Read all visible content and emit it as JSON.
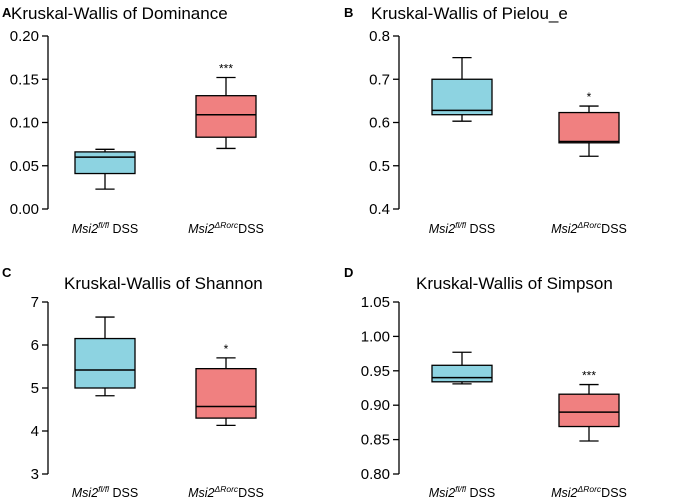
{
  "colors": {
    "group1": "#8dd3e1",
    "group2": "#f08080",
    "stroke": "#000000"
  },
  "chart_data": [
    {
      "type": "box",
      "panel": "A",
      "title": "Kruskal-Wallis of Dominance",
      "ylim": [
        0,
        0.2
      ],
      "yticks": [
        "0.00",
        "0.05",
        "0.10",
        "0.15",
        "0.20"
      ],
      "groups": [
        {
          "prefix": "Msi2",
          "sup": "fl/fl",
          "suffix": " DSS",
          "min": 0.023,
          "q1": 0.041,
          "median": 0.06,
          "q3": 0.066,
          "max": 0.069,
          "sig": ""
        },
        {
          "prefix": "Msi2",
          "sup": "ΔRorc",
          "suffix": "DSS",
          "min": 0.07,
          "q1": 0.083,
          "median": 0.109,
          "q3": 0.131,
          "max": 0.152,
          "sig": "***"
        }
      ]
    },
    {
      "type": "box",
      "panel": "B",
      "title": "Kruskal-Wallis of Pielou_e",
      "ylim": [
        0.4,
        0.8
      ],
      "yticks": [
        "0.4",
        "0.5",
        "0.6",
        "0.7",
        "0.8"
      ],
      "groups": [
        {
          "prefix": "Msi2",
          "sup": "fl/fl",
          "suffix": " DSS",
          "min": 0.603,
          "q1": 0.618,
          "median": 0.628,
          "q3": 0.7,
          "max": 0.75,
          "sig": ""
        },
        {
          "prefix": "Msi2",
          "sup": "ΔRorc",
          "suffix": "DSS",
          "min": 0.522,
          "q1": 0.553,
          "median": 0.556,
          "q3": 0.623,
          "max": 0.638,
          "sig": "*"
        }
      ]
    },
    {
      "type": "box",
      "panel": "C",
      "title": "Kruskal-Wallis of Shannon",
      "ylim": [
        3,
        7
      ],
      "yticks": [
        "3",
        "4",
        "5",
        "6",
        "7"
      ],
      "groups": [
        {
          "prefix": "Msi2",
          "sup": "fl/fl",
          "suffix": " DSS",
          "min": 4.82,
          "q1": 5.0,
          "median": 5.42,
          "q3": 6.15,
          "max": 6.65,
          "sig": ""
        },
        {
          "prefix": "Msi2",
          "sup": "ΔRorc",
          "suffix": "DSS",
          "min": 4.13,
          "q1": 4.3,
          "median": 4.57,
          "q3": 5.45,
          "max": 5.7,
          "sig": "*"
        }
      ]
    },
    {
      "type": "box",
      "panel": "D",
      "title": "Kruskal-Wallis of Simpson",
      "ylim": [
        0.8,
        1.05
      ],
      "yticks": [
        "0.80",
        "0.85",
        "0.90",
        "0.95",
        "1.00",
        "1.05"
      ],
      "groups": [
        {
          "prefix": "Msi2",
          "sup": "fl/fl",
          "suffix": " DSS",
          "min": 0.931,
          "q1": 0.934,
          "median": 0.94,
          "q3": 0.958,
          "max": 0.977,
          "sig": ""
        },
        {
          "prefix": "Msi2",
          "sup": "ΔRorc",
          "suffix": "DSS",
          "min": 0.848,
          "q1": 0.869,
          "median": 0.89,
          "q3": 0.916,
          "max": 0.93,
          "sig": "***"
        }
      ]
    }
  ]
}
